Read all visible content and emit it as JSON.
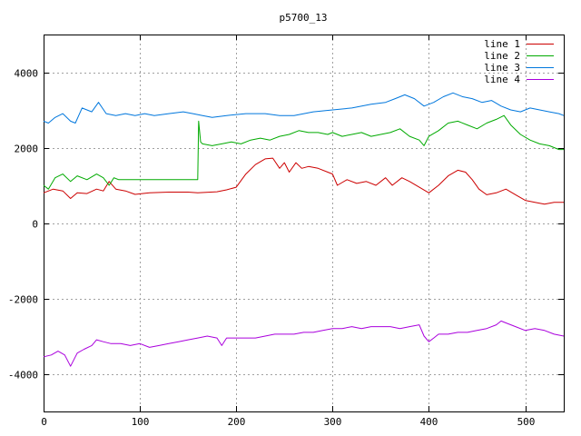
{
  "chart_data": {
    "type": "line",
    "title": "p5700_13",
    "xlabel": "",
    "ylabel": "",
    "xlim": [
      0,
      540
    ],
    "ylim": [
      -5000,
      5000
    ],
    "x_ticks": [
      0,
      100,
      200,
      300,
      400,
      500
    ],
    "y_ticks": [
      -4000,
      -2000,
      0,
      2000,
      4000
    ],
    "grid": true,
    "legend_position": "top-right",
    "series": [
      {
        "name": "line 1",
        "color": "#cc0000",
        "points": [
          [
            0,
            800
          ],
          [
            10,
            900
          ],
          [
            20,
            850
          ],
          [
            28,
            650
          ],
          [
            35,
            800
          ],
          [
            45,
            780
          ],
          [
            55,
            900
          ],
          [
            62,
            850
          ],
          [
            68,
            1100
          ],
          [
            75,
            900
          ],
          [
            85,
            850
          ],
          [
            95,
            760
          ],
          [
            110,
            800
          ],
          [
            130,
            820
          ],
          [
            150,
            820
          ],
          [
            160,
            800
          ],
          [
            180,
            830
          ],
          [
            190,
            880
          ],
          [
            200,
            950
          ],
          [
            210,
            1300
          ],
          [
            220,
            1550
          ],
          [
            230,
            1700
          ],
          [
            238,
            1720
          ],
          [
            245,
            1450
          ],
          [
            250,
            1600
          ],
          [
            255,
            1350
          ],
          [
            262,
            1600
          ],
          [
            268,
            1450
          ],
          [
            275,
            1500
          ],
          [
            285,
            1450
          ],
          [
            295,
            1350
          ],
          [
            300,
            1300
          ],
          [
            305,
            1000
          ],
          [
            315,
            1150
          ],
          [
            325,
            1050
          ],
          [
            335,
            1100
          ],
          [
            345,
            1000
          ],
          [
            355,
            1200
          ],
          [
            362,
            1000
          ],
          [
            372,
            1200
          ],
          [
            380,
            1100
          ],
          [
            390,
            950
          ],
          [
            400,
            800
          ],
          [
            410,
            1000
          ],
          [
            420,
            1250
          ],
          [
            430,
            1400
          ],
          [
            438,
            1350
          ],
          [
            445,
            1150
          ],
          [
            452,
            900
          ],
          [
            460,
            750
          ],
          [
            470,
            800
          ],
          [
            480,
            900
          ],
          [
            490,
            750
          ],
          [
            500,
            600
          ],
          [
            510,
            550
          ],
          [
            520,
            500
          ],
          [
            530,
            550
          ],
          [
            540,
            550
          ]
        ]
      },
      {
        "name": "line 2",
        "color": "#00aa00",
        "points": [
          [
            0,
            1000
          ],
          [
            5,
            900
          ],
          [
            12,
            1200
          ],
          [
            20,
            1300
          ],
          [
            28,
            1100
          ],
          [
            35,
            1250
          ],
          [
            45,
            1150
          ],
          [
            55,
            1300
          ],
          [
            62,
            1200
          ],
          [
            68,
            1000
          ],
          [
            73,
            1200
          ],
          [
            78,
            1150
          ],
          [
            160,
            1150
          ],
          [
            161,
            2700
          ],
          [
            163,
            2150
          ],
          [
            165,
            2100
          ],
          [
            175,
            2050
          ],
          [
            185,
            2100
          ],
          [
            195,
            2150
          ],
          [
            205,
            2100
          ],
          [
            215,
            2200
          ],
          [
            225,
            2250
          ],
          [
            235,
            2200
          ],
          [
            245,
            2300
          ],
          [
            255,
            2350
          ],
          [
            265,
            2450
          ],
          [
            275,
            2400
          ],
          [
            285,
            2400
          ],
          [
            295,
            2350
          ],
          [
            300,
            2400
          ],
          [
            310,
            2300
          ],
          [
            320,
            2350
          ],
          [
            330,
            2400
          ],
          [
            340,
            2300
          ],
          [
            350,
            2350
          ],
          [
            360,
            2400
          ],
          [
            370,
            2500
          ],
          [
            380,
            2300
          ],
          [
            390,
            2200
          ],
          [
            395,
            2050
          ],
          [
            400,
            2300
          ],
          [
            410,
            2450
          ],
          [
            420,
            2650
          ],
          [
            430,
            2700
          ],
          [
            440,
            2600
          ],
          [
            450,
            2500
          ],
          [
            460,
            2650
          ],
          [
            470,
            2750
          ],
          [
            478,
            2850
          ],
          [
            485,
            2600
          ],
          [
            495,
            2350
          ],
          [
            505,
            2200
          ],
          [
            515,
            2100
          ],
          [
            525,
            2050
          ],
          [
            535,
            1950
          ],
          [
            540,
            1950
          ]
        ]
      },
      {
        "name": "line 3",
        "color": "#0077dd",
        "points": [
          [
            0,
            2700
          ],
          [
            5,
            2650
          ],
          [
            12,
            2800
          ],
          [
            20,
            2900
          ],
          [
            28,
            2700
          ],
          [
            33,
            2650
          ],
          [
            40,
            3050
          ],
          [
            50,
            2950
          ],
          [
            57,
            3200
          ],
          [
            65,
            2900
          ],
          [
            75,
            2850
          ],
          [
            85,
            2900
          ],
          [
            95,
            2850
          ],
          [
            105,
            2900
          ],
          [
            115,
            2850
          ],
          [
            130,
            2900
          ],
          [
            145,
            2950
          ],
          [
            155,
            2900
          ],
          [
            165,
            2850
          ],
          [
            175,
            2800
          ],
          [
            190,
            2850
          ],
          [
            210,
            2900
          ],
          [
            230,
            2900
          ],
          [
            245,
            2850
          ],
          [
            260,
            2850
          ],
          [
            280,
            2950
          ],
          [
            300,
            3000
          ],
          [
            320,
            3050
          ],
          [
            340,
            3150
          ],
          [
            355,
            3200
          ],
          [
            365,
            3300
          ],
          [
            375,
            3400
          ],
          [
            385,
            3300
          ],
          [
            395,
            3100
          ],
          [
            405,
            3200
          ],
          [
            415,
            3350
          ],
          [
            425,
            3450
          ],
          [
            435,
            3350
          ],
          [
            445,
            3300
          ],
          [
            455,
            3200
          ],
          [
            465,
            3250
          ],
          [
            475,
            3100
          ],
          [
            485,
            3000
          ],
          [
            495,
            2950
          ],
          [
            505,
            3050
          ],
          [
            515,
            3000
          ],
          [
            525,
            2950
          ],
          [
            535,
            2900
          ],
          [
            540,
            2850
          ]
        ]
      },
      {
        "name": "line 4",
        "color": "#aa00dd",
        "points": [
          [
            0,
            -3550
          ],
          [
            8,
            -3500
          ],
          [
            15,
            -3400
          ],
          [
            22,
            -3500
          ],
          [
            28,
            -3800
          ],
          [
            35,
            -3450
          ],
          [
            42,
            -3350
          ],
          [
            50,
            -3250
          ],
          [
            55,
            -3100
          ],
          [
            62,
            -3150
          ],
          [
            70,
            -3200
          ],
          [
            80,
            -3200
          ],
          [
            90,
            -3250
          ],
          [
            100,
            -3200
          ],
          [
            110,
            -3300
          ],
          [
            120,
            -3250
          ],
          [
            130,
            -3200
          ],
          [
            140,
            -3150
          ],
          [
            150,
            -3100
          ],
          [
            160,
            -3050
          ],
          [
            170,
            -3000
          ],
          [
            180,
            -3050
          ],
          [
            185,
            -3250
          ],
          [
            190,
            -3050
          ],
          [
            200,
            -3050
          ],
          [
            210,
            -3050
          ],
          [
            220,
            -3050
          ],
          [
            230,
            -3000
          ],
          [
            240,
            -2950
          ],
          [
            250,
            -2950
          ],
          [
            260,
            -2950
          ],
          [
            270,
            -2900
          ],
          [
            280,
            -2900
          ],
          [
            290,
            -2850
          ],
          [
            300,
            -2800
          ],
          [
            310,
            -2800
          ],
          [
            320,
            -2750
          ],
          [
            330,
            -2800
          ],
          [
            340,
            -2750
          ],
          [
            350,
            -2750
          ],
          [
            360,
            -2750
          ],
          [
            370,
            -2800
          ],
          [
            380,
            -2750
          ],
          [
            390,
            -2700
          ],
          [
            395,
            -3000
          ],
          [
            400,
            -3150
          ],
          [
            405,
            -3050
          ],
          [
            410,
            -2950
          ],
          [
            420,
            -2950
          ],
          [
            430,
            -2900
          ],
          [
            440,
            -2900
          ],
          [
            450,
            -2850
          ],
          [
            460,
            -2800
          ],
          [
            470,
            -2700
          ],
          [
            475,
            -2600
          ],
          [
            480,
            -2650
          ],
          [
            490,
            -2750
          ],
          [
            500,
            -2850
          ],
          [
            510,
            -2800
          ],
          [
            520,
            -2850
          ],
          [
            530,
            -2950
          ],
          [
            540,
            -3000
          ]
        ]
      }
    ]
  }
}
